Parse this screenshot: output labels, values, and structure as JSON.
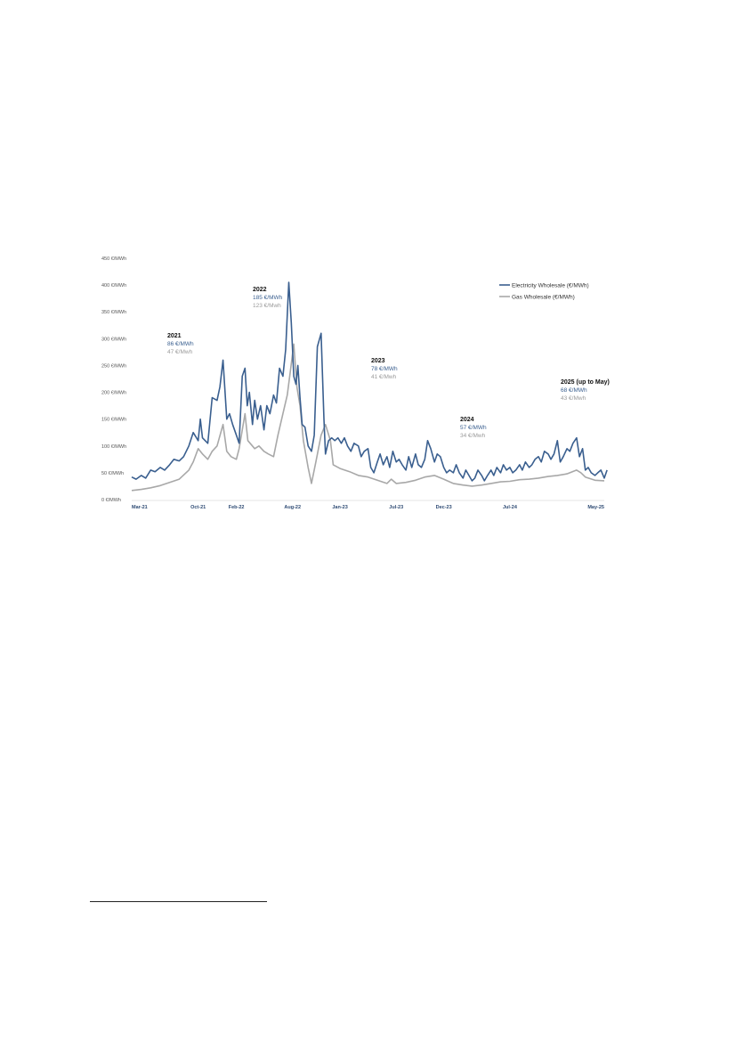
{
  "chart_data": {
    "type": "line",
    "y_ticks": [
      {
        "value": 0,
        "label": "0 €/MWh"
      },
      {
        "value": 50,
        "label": "50 €/MWh"
      },
      {
        "value": 100,
        "label": "100 €/MWh"
      },
      {
        "value": 150,
        "label": "150 €/MWh"
      },
      {
        "value": 200,
        "label": "200 €/MWh"
      },
      {
        "value": 250,
        "label": "250 €/MWh"
      },
      {
        "value": 300,
        "label": "300 €/MWh"
      },
      {
        "value": 350,
        "label": "350 €/MWh"
      },
      {
        "value": 400,
        "label": "400 €/MWh"
      },
      {
        "value": 450,
        "label": "450 €/MWh"
      }
    ],
    "ylim": [
      0,
      450
    ],
    "x_ticks": [
      {
        "date": "2021-03",
        "label": "Mar-21"
      },
      {
        "date": "2021-10",
        "label": "Oct-21"
      },
      {
        "date": "2022-02",
        "label": "Feb-22"
      },
      {
        "date": "2022-08",
        "label": "Aug-22"
      },
      {
        "date": "2023-01",
        "label": "Jan-23"
      },
      {
        "date": "2023-07",
        "label": "Jul-23"
      },
      {
        "date": "2023-12",
        "label": "Dec-23"
      },
      {
        "date": "2024-07",
        "label": "Jul-24"
      },
      {
        "date": "2025-05",
        "label": "May-25"
      }
    ],
    "legend_position": "top-right",
    "series": [
      {
        "name": "Electricity Wholesale (€/MWh)",
        "color": "#3a5f8f",
        "points": [
          [
            "2021-03-01",
            42
          ],
          [
            "2021-03-15",
            38
          ],
          [
            "2021-04-01",
            45
          ],
          [
            "2021-04-15",
            40
          ],
          [
            "2021-05-01",
            55
          ],
          [
            "2021-05-15",
            52
          ],
          [
            "2021-06-01",
            60
          ],
          [
            "2021-06-15",
            55
          ],
          [
            "2021-07-01",
            65
          ],
          [
            "2021-07-15",
            75
          ],
          [
            "2021-08-01",
            72
          ],
          [
            "2021-08-15",
            80
          ],
          [
            "2021-09-01",
            100
          ],
          [
            "2021-09-15",
            125
          ],
          [
            "2021-10-01",
            110
          ],
          [
            "2021-10-08",
            150
          ],
          [
            "2021-10-15",
            115
          ],
          [
            "2021-11-01",
            105
          ],
          [
            "2021-11-15",
            190
          ],
          [
            "2021-12-01",
            185
          ],
          [
            "2021-12-10",
            210
          ],
          [
            "2021-12-20",
            260
          ],
          [
            "2022-01-01",
            150
          ],
          [
            "2022-01-10",
            160
          ],
          [
            "2022-01-20",
            140
          ],
          [
            "2022-02-01",
            120
          ],
          [
            "2022-02-10",
            105
          ],
          [
            "2022-02-20",
            230
          ],
          [
            "2022-03-01",
            245
          ],
          [
            "2022-03-08",
            175
          ],
          [
            "2022-03-15",
            200
          ],
          [
            "2022-03-25",
            140
          ],
          [
            "2022-04-01",
            185
          ],
          [
            "2022-04-10",
            150
          ],
          [
            "2022-04-20",
            175
          ],
          [
            "2022-05-01",
            130
          ],
          [
            "2022-05-10",
            175
          ],
          [
            "2022-05-20",
            160
          ],
          [
            "2022-06-01",
            195
          ],
          [
            "2022-06-10",
            180
          ],
          [
            "2022-06-20",
            245
          ],
          [
            "2022-07-01",
            230
          ],
          [
            "2022-07-10",
            280
          ],
          [
            "2022-07-20",
            405
          ],
          [
            "2022-07-28",
            330
          ],
          [
            "2022-08-05",
            230
          ],
          [
            "2022-08-12",
            215
          ],
          [
            "2022-08-18",
            250
          ],
          [
            "2022-08-25",
            190
          ],
          [
            "2022-09-01",
            140
          ],
          [
            "2022-09-10",
            135
          ],
          [
            "2022-09-20",
            100
          ],
          [
            "2022-10-01",
            90
          ],
          [
            "2022-10-10",
            120
          ],
          [
            "2022-10-20",
            285
          ],
          [
            "2022-11-01",
            310
          ],
          [
            "2022-11-10",
            150
          ],
          [
            "2022-11-15",
            85
          ],
          [
            "2022-11-25",
            110
          ],
          [
            "2022-12-05",
            115
          ],
          [
            "2022-12-15",
            110
          ],
          [
            "2022-12-25",
            115
          ],
          [
            "2023-01-05",
            105
          ],
          [
            "2023-01-15",
            115
          ],
          [
            "2023-01-25",
            100
          ],
          [
            "2023-02-05",
            90
          ],
          [
            "2023-02-15",
            105
          ],
          [
            "2023-03-01",
            100
          ],
          [
            "2023-03-10",
            80
          ],
          [
            "2023-03-20",
            90
          ],
          [
            "2023-04-01",
            95
          ],
          [
            "2023-04-10",
            60
          ],
          [
            "2023-04-20",
            50
          ],
          [
            "2023-05-01",
            70
          ],
          [
            "2023-05-10",
            85
          ],
          [
            "2023-05-20",
            65
          ],
          [
            "2023-06-01",
            80
          ],
          [
            "2023-06-10",
            60
          ],
          [
            "2023-06-20",
            90
          ],
          [
            "2023-07-01",
            70
          ],
          [
            "2023-07-10",
            75
          ],
          [
            "2023-07-20",
            65
          ],
          [
            "2023-08-01",
            55
          ],
          [
            "2023-08-10",
            80
          ],
          [
            "2023-08-20",
            60
          ],
          [
            "2023-09-01",
            85
          ],
          [
            "2023-09-10",
            65
          ],
          [
            "2023-09-20",
            60
          ],
          [
            "2023-10-01",
            75
          ],
          [
            "2023-10-10",
            110
          ],
          [
            "2023-10-20",
            95
          ],
          [
            "2023-11-01",
            70
          ],
          [
            "2023-11-10",
            85
          ],
          [
            "2023-11-20",
            80
          ],
          [
            "2023-12-01",
            60
          ],
          [
            "2023-12-10",
            50
          ],
          [
            "2023-12-20",
            55
          ],
          [
            "2024-01-01",
            50
          ],
          [
            "2024-01-10",
            65
          ],
          [
            "2024-01-20",
            50
          ],
          [
            "2024-02-01",
            40
          ],
          [
            "2024-02-10",
            55
          ],
          [
            "2024-02-20",
            45
          ],
          [
            "2024-03-01",
            35
          ],
          [
            "2024-03-10",
            40
          ],
          [
            "2024-03-20",
            55
          ],
          [
            "2024-04-01",
            45
          ],
          [
            "2024-04-10",
            35
          ],
          [
            "2024-04-20",
            45
          ],
          [
            "2024-05-01",
            55
          ],
          [
            "2024-05-10",
            45
          ],
          [
            "2024-05-20",
            60
          ],
          [
            "2024-06-01",
            50
          ],
          [
            "2024-06-10",
            65
          ],
          [
            "2024-06-20",
            55
          ],
          [
            "2024-07-01",
            60
          ],
          [
            "2024-07-10",
            50
          ],
          [
            "2024-07-20",
            55
          ],
          [
            "2024-08-01",
            65
          ],
          [
            "2024-08-10",
            55
          ],
          [
            "2024-08-20",
            70
          ],
          [
            "2024-09-01",
            60
          ],
          [
            "2024-09-10",
            65
          ],
          [
            "2024-09-20",
            75
          ],
          [
            "2024-10-01",
            80
          ],
          [
            "2024-10-10",
            70
          ],
          [
            "2024-10-20",
            90
          ],
          [
            "2024-11-01",
            85
          ],
          [
            "2024-11-10",
            75
          ],
          [
            "2024-11-20",
            85
          ],
          [
            "2024-12-01",
            110
          ],
          [
            "2024-12-10",
            70
          ],
          [
            "2024-12-20",
            80
          ],
          [
            "2025-01-01",
            95
          ],
          [
            "2025-01-10",
            90
          ],
          [
            "2025-01-20",
            105
          ],
          [
            "2025-02-01",
            115
          ],
          [
            "2025-02-10",
            80
          ],
          [
            "2025-02-20",
            95
          ],
          [
            "2025-03-01",
            55
          ],
          [
            "2025-03-10",
            60
          ],
          [
            "2025-03-20",
            50
          ],
          [
            "2025-04-01",
            45
          ],
          [
            "2025-04-10",
            50
          ],
          [
            "2025-04-20",
            55
          ],
          [
            "2025-05-01",
            40
          ],
          [
            "2025-05-10",
            55
          ]
        ]
      },
      {
        "name": "Gas Wholesale (€/MWh)",
        "color": "#a8a8a8",
        "points": [
          [
            "2021-03-01",
            17
          ],
          [
            "2021-04-01",
            19
          ],
          [
            "2021-05-01",
            22
          ],
          [
            "2021-06-01",
            26
          ],
          [
            "2021-07-01",
            32
          ],
          [
            "2021-08-01",
            38
          ],
          [
            "2021-09-01",
            55
          ],
          [
            "2021-09-15",
            70
          ],
          [
            "2021-10-01",
            95
          ],
          [
            "2021-10-15",
            85
          ],
          [
            "2021-11-01",
            75
          ],
          [
            "2021-11-15",
            90
          ],
          [
            "2021-12-01",
            100
          ],
          [
            "2021-12-20",
            140
          ],
          [
            "2022-01-01",
            90
          ],
          [
            "2022-01-15",
            80
          ],
          [
            "2022-02-01",
            75
          ],
          [
            "2022-02-10",
            95
          ],
          [
            "2022-03-01",
            160
          ],
          [
            "2022-03-10",
            110
          ],
          [
            "2022-04-01",
            95
          ],
          [
            "2022-04-15",
            100
          ],
          [
            "2022-05-01",
            90
          ],
          [
            "2022-05-15",
            85
          ],
          [
            "2022-06-01",
            80
          ],
          [
            "2022-06-15",
            120
          ],
          [
            "2022-07-01",
            160
          ],
          [
            "2022-07-15",
            195
          ],
          [
            "2022-07-25",
            240
          ],
          [
            "2022-08-05",
            290
          ],
          [
            "2022-08-15",
            210
          ],
          [
            "2022-08-25",
            175
          ],
          [
            "2022-09-05",
            110
          ],
          [
            "2022-09-20",
            60
          ],
          [
            "2022-10-01",
            30
          ],
          [
            "2022-10-15",
            70
          ],
          [
            "2022-11-01",
            120
          ],
          [
            "2022-11-15",
            140
          ],
          [
            "2022-12-01",
            110
          ],
          [
            "2022-12-10",
            65
          ],
          [
            "2023-01-01",
            58
          ],
          [
            "2023-02-01",
            52
          ],
          [
            "2023-03-01",
            45
          ],
          [
            "2023-04-01",
            42
          ],
          [
            "2023-05-01",
            36
          ],
          [
            "2023-06-01",
            30
          ],
          [
            "2023-06-15",
            38
          ],
          [
            "2023-07-01",
            30
          ],
          [
            "2023-08-01",
            32
          ],
          [
            "2023-09-01",
            36
          ],
          [
            "2023-10-01",
            42
          ],
          [
            "2023-11-01",
            45
          ],
          [
            "2023-12-01",
            38
          ],
          [
            "2024-01-01",
            30
          ],
          [
            "2024-02-01",
            27
          ],
          [
            "2024-03-01",
            25
          ],
          [
            "2024-04-01",
            27
          ],
          [
            "2024-05-01",
            30
          ],
          [
            "2024-06-01",
            33
          ],
          [
            "2024-07-01",
            34
          ],
          [
            "2024-08-01",
            37
          ],
          [
            "2024-09-01",
            38
          ],
          [
            "2024-10-01",
            40
          ],
          [
            "2024-11-01",
            43
          ],
          [
            "2024-12-01",
            45
          ],
          [
            "2025-01-01",
            48
          ],
          [
            "2025-02-01",
            55
          ],
          [
            "2025-02-15",
            50
          ],
          [
            "2025-03-01",
            42
          ],
          [
            "2025-04-01",
            36
          ],
          [
            "2025-05-01",
            35
          ]
        ]
      }
    ],
    "annotations": [
      {
        "year": "2021",
        "electricity": "86 €/MWh",
        "gas": "47 €/Mwh"
      },
      {
        "year": "2022",
        "electricity": "185 €/MWh",
        "gas": "123 €/Mwh"
      },
      {
        "year": "2023",
        "electricity": "78 €/MWh",
        "gas": "41 €/Mwh"
      },
      {
        "year": "2024",
        "electricity": "57 €/MWh",
        "gas": "34 €/Mwh"
      },
      {
        "year": "2025 (up to May)",
        "electricity": "68 €/MWh",
        "gas": "43 €/Mwh"
      }
    ]
  }
}
